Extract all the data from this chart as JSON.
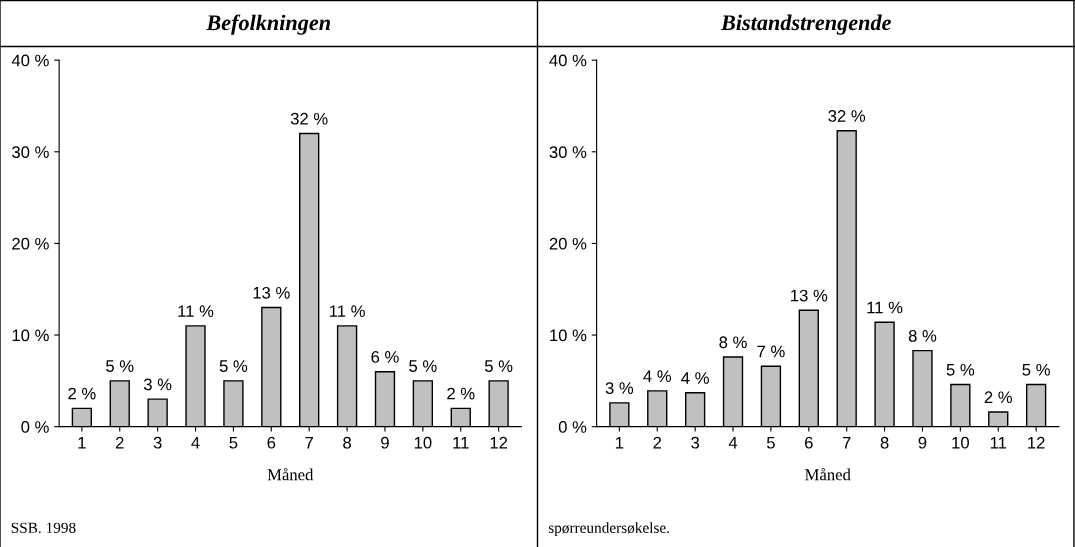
{
  "chart_data": [
    {
      "type": "bar",
      "title": "Befolkningen",
      "xlabel": "Måned",
      "categories": [
        "1",
        "2",
        "3",
        "4",
        "5",
        "6",
        "7",
        "8",
        "9",
        "10",
        "11",
        "12"
      ],
      "values": [
        2,
        5,
        3,
        11,
        5,
        13,
        32,
        11,
        6,
        5,
        2,
        5
      ],
      "value_labels": [
        "2 %",
        "5 %",
        "3 %",
        "11 %",
        "5 %",
        "13 %",
        "32 %",
        "11 %",
        "6 %",
        "5 %",
        "2 %",
        "5 %"
      ],
      "color": "#c0c0c0",
      "ylim": [
        0,
        40
      ],
      "yticks": [
        {
          "value": 0,
          "label": "0 %"
        },
        {
          "value": 10,
          "label": "10 %"
        },
        {
          "value": 20,
          "label": "20 %"
        },
        {
          "value": 30,
          "label": "30 %"
        },
        {
          "value": 40,
          "label": "40 %"
        }
      ],
      "grid": false,
      "annotations": [
        "SSB. 1998"
      ]
    },
    {
      "type": "bar",
      "title": "Bistandstrengende",
      "xlabel": "Måned",
      "categories": [
        "1",
        "2",
        "3",
        "4",
        "5",
        "6",
        "7",
        "8",
        "9",
        "10",
        "11",
        "12"
      ],
      "values": [
        2.6,
        3.9,
        3.7,
        7.6,
        6.6,
        12.7,
        32.3,
        11.4,
        8.3,
        4.6,
        1.6,
        4.6
      ],
      "value_labels": [
        "3 %",
        "4 %",
        "4 %",
        "8 %",
        "7 %",
        "13 %",
        "32 %",
        "11 %",
        "8 %",
        "5 %",
        "2 %",
        "5 %"
      ],
      "color": "#c0c0c0",
      "ylim": [
        0,
        40
      ],
      "yticks": [
        {
          "value": 0,
          "label": "0 %"
        },
        {
          "value": 10,
          "label": "10 %"
        },
        {
          "value": 20,
          "label": "20 %"
        },
        {
          "value": 30,
          "label": "30 %"
        },
        {
          "value": 40,
          "label": "40 %"
        }
      ],
      "grid": false,
      "annotations": [
        "spørreundersøkelse."
      ]
    }
  ]
}
